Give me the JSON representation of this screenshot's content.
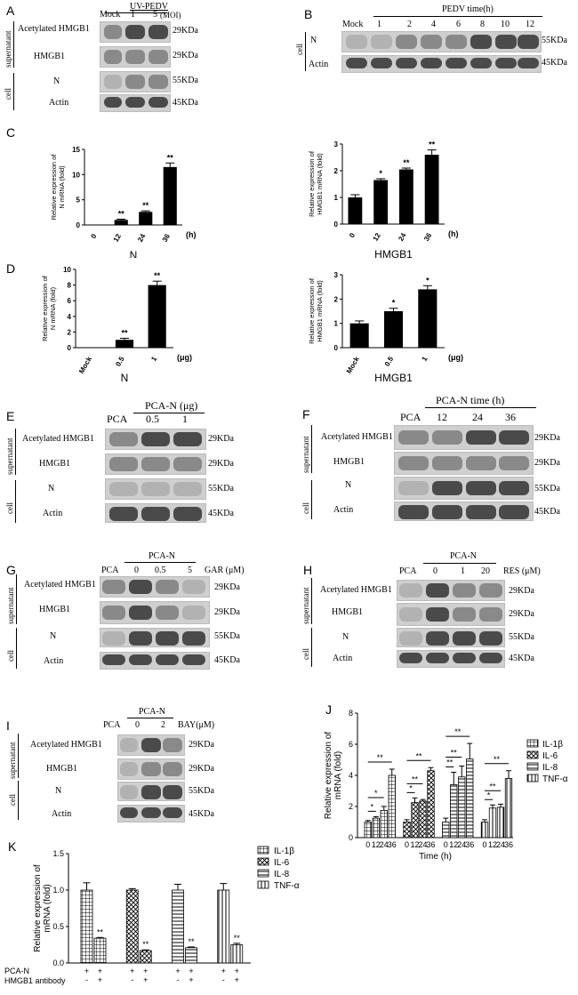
{
  "panels": {
    "A": {
      "letter": "A",
      "header_label": "UV-PEDV",
      "lanes": [
        "Mock",
        "1",
        "5"
      ],
      "moi_label": "(MOI)",
      "rows": [
        "Acetylated HMGB1",
        "HMGB1",
        "N",
        "Actin"
      ],
      "sizes": [
        "29KDa",
        "29KDa",
        "55KDa",
        "45KDa"
      ],
      "group_supernatant": "supernatant",
      "group_cell": "cell"
    },
    "B": {
      "letter": "B",
      "header_label": "PEDV time(h)",
      "lanes": [
        "Mock",
        "1",
        "2",
        "4",
        "6",
        "8",
        "10",
        "12"
      ],
      "rows": [
        "N",
        "Actin"
      ],
      "sizes": [
        "55KDa",
        "45KDa"
      ],
      "group_cell": "cell"
    },
    "C": {
      "letter": "C"
    },
    "D": {
      "letter": "D"
    },
    "E": {
      "letter": "E",
      "header_label": "PCA-N (μg)",
      "lanes": [
        "PCA",
        "0.5",
        "1"
      ],
      "rows": [
        "Acetylated HMGB1",
        "HMGB1",
        "N",
        "Actin"
      ],
      "sizes": [
        "29KDa",
        "29KDa",
        "55KDa",
        "45KDa"
      ],
      "group_supernatant": "supernatant",
      "group_cell": "cell"
    },
    "F": {
      "letter": "F",
      "header_label": "PCA-N time (h)",
      "lanes": [
        "PCA",
        "12",
        "24",
        "36"
      ],
      "rows": [
        "Acetylated HMGB1",
        "HMGB1",
        "N",
        "Actin"
      ],
      "sizes": [
        "29KDa",
        "29KDa",
        "55KDa",
        "45KDa"
      ],
      "group_supernatant": "supernatant",
      "group_cell": "cell"
    },
    "G": {
      "letter": "G",
      "header_label": "PCA-N",
      "lanes": [
        "PCA",
        "0",
        "0.5",
        "5"
      ],
      "unit_label": "GAR (μM)",
      "rows": [
        "Acetylated HMGB1",
        "HMGB1",
        "N",
        "Actin"
      ],
      "sizes": [
        "29KDa",
        "29KDa",
        "55KDa",
        "45KDa"
      ],
      "group_supernatant": "supernatant",
      "group_cell": "cell"
    },
    "H": {
      "letter": "H",
      "header_label": "PCA-N",
      "lanes": [
        "PCA",
        "0",
        "1",
        "20"
      ],
      "unit_label": "RES (μM)",
      "rows": [
        "Acetylated HMGB1",
        "HMGB1",
        "N",
        "Actin"
      ],
      "sizes": [
        "29KDa",
        "29KDa",
        "55KDa",
        "45KDa"
      ],
      "group_supernatant": "supernatant",
      "group_cell": "cell"
    },
    "I": {
      "letter": "I",
      "header_label": "PCA-N",
      "lanes": [
        "PCA",
        "0",
        "2"
      ],
      "unit_label": "BAY(μM)",
      "rows": [
        "Acetylated HMGB1",
        "HMGB1",
        "N",
        "Actin"
      ],
      "sizes": [
        "29KDa",
        "29KDa",
        "55KDa",
        "45KDa"
      ],
      "group_supernatant": "supernatant",
      "group_cell": "cell"
    },
    "J": {
      "letter": "J"
    },
    "K": {
      "letter": "K",
      "row1_label": "PCA-N",
      "row2_label": "HMGB1 antibody",
      "row1_signs": [
        "+",
        "+",
        "+",
        "+",
        "+",
        "+",
        "+",
        "+"
      ],
      "row2_signs": [
        "-",
        "+",
        "-",
        "+",
        "-",
        "+",
        "-",
        "+"
      ]
    }
  },
  "chart_data": [
    {
      "id": "C-left",
      "type": "bar",
      "categories": [
        "0",
        "12",
        "24",
        "36"
      ],
      "values": [
        0,
        1.0,
        2.6,
        11.5
      ],
      "errors": [
        0,
        0.15,
        0.2,
        0.8
      ],
      "sig": [
        "",
        "**",
        "**",
        "**"
      ],
      "ylabel": "Relative expression of N mRNA (fold)",
      "xunit": "(h)",
      "xlabel": "N",
      "ylim": [
        0,
        15
      ],
      "yticks": [
        0,
        5,
        10,
        15
      ]
    },
    {
      "id": "C-right",
      "type": "bar",
      "categories": [
        "0",
        "12",
        "24",
        "36"
      ],
      "values": [
        1.0,
        1.65,
        2.05,
        2.6
      ],
      "errors": [
        0.1,
        0.05,
        0.05,
        0.18
      ],
      "sig": [
        "",
        "*",
        "**",
        "**"
      ],
      "ylabel": "Relative expression of HMGB1 mRNA (fold)",
      "xunit": "(h)",
      "xlabel": "HMGB1",
      "ylim": [
        0,
        3
      ],
      "yticks": [
        0,
        1,
        2,
        3
      ]
    },
    {
      "id": "D-left",
      "type": "bar",
      "categories": [
        "Mock",
        "0.5",
        "1"
      ],
      "values": [
        0,
        1.0,
        8.0
      ],
      "errors": [
        0,
        0.2,
        0.5
      ],
      "sig": [
        "",
        "**",
        "**"
      ],
      "ylabel": "Relative expression of N mRNA (fold)",
      "xunit": "(μg)",
      "xlabel": "N",
      "ylim": [
        0,
        10
      ],
      "yticks": [
        0,
        2,
        4,
        6,
        8,
        10
      ]
    },
    {
      "id": "D-right",
      "type": "bar",
      "categories": [
        "Mock",
        "0.5",
        "1"
      ],
      "values": [
        1.0,
        1.5,
        2.4
      ],
      "errors": [
        0.1,
        0.12,
        0.15
      ],
      "sig": [
        "",
        "*",
        "*"
      ],
      "ylabel": "Relative expression of HMGB1 mRNA (fold)",
      "xunit": "(μg)",
      "xlabel": "HMGB1",
      "ylim": [
        0,
        3
      ],
      "yticks": [
        0,
        1,
        2,
        3
      ]
    },
    {
      "id": "J",
      "type": "bar",
      "categories": [
        "0",
        "12",
        "24",
        "36"
      ],
      "series": [
        {
          "name": "IL-1β",
          "values": [
            1.0,
            1.25,
            1.75,
            4.0
          ],
          "errors": [
            0.1,
            0.1,
            0.25,
            0.4
          ]
        },
        {
          "name": "IL-6",
          "values": [
            1.0,
            2.25,
            2.35,
            4.3
          ],
          "errors": [
            0.15,
            0.3,
            0.1,
            0.2
          ]
        },
        {
          "name": "IL-8",
          "values": [
            1.0,
            3.4,
            3.9,
            5.05
          ],
          "errors": [
            0.25,
            0.8,
            0.7,
            1.0
          ]
        },
        {
          "name": "TNF-α",
          "values": [
            1.0,
            1.9,
            1.95,
            3.8
          ],
          "errors": [
            0.15,
            0.2,
            0.2,
            0.5
          ]
        }
      ],
      "ylabel": "Relative expression of mRNA (fold)",
      "xlabel": "Time (h)",
      "ylim": [
        0,
        8
      ],
      "yticks": [
        0,
        2,
        4,
        6,
        8
      ]
    },
    {
      "id": "K",
      "type": "bar",
      "series": [
        {
          "name": "IL-1β",
          "values": [
            1.0,
            0.34
          ],
          "errors": [
            0.1,
            0.01
          ]
        },
        {
          "name": "IL-6",
          "values": [
            1.0,
            0.17
          ],
          "errors": [
            0.02,
            0.01
          ]
        },
        {
          "name": "IL-8",
          "values": [
            1.0,
            0.21
          ],
          "errors": [
            0.08,
            0.01
          ]
        },
        {
          "name": "TNF-α",
          "values": [
            1.0,
            0.25
          ],
          "errors": [
            0.09,
            0.02
          ]
        }
      ],
      "sig": [
        "**",
        "**",
        "**",
        "**"
      ],
      "ylabel": "Relative expression of mRNA (fold)",
      "ylim": [
        0,
        1.5
      ],
      "yticks": [
        0.0,
        0.5,
        1.0,
        1.5
      ]
    }
  ]
}
